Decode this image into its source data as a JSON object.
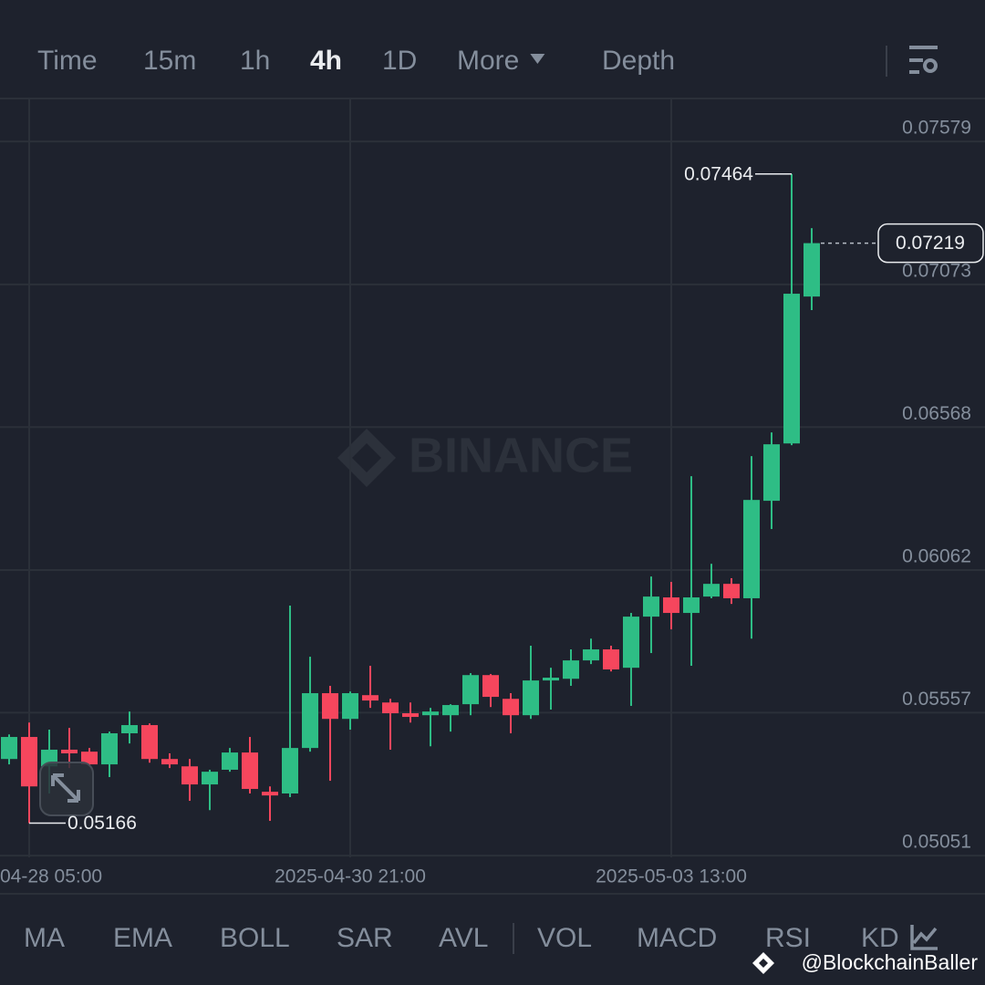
{
  "tabs": [
    "Time",
    "15m",
    "1h",
    "4h",
    "1D",
    "More",
    "Depth"
  ],
  "active_tab": 3,
  "indicators": [
    "MA",
    "EMA",
    "BOLL",
    "SAR",
    "AVL",
    "VOL",
    "MACD",
    "RSI",
    "KD"
  ],
  "watermark": "BINANCE",
  "credit": "@BlockchainBaller",
  "chart_data": {
    "type": "candlestick",
    "up_color": "#2ebd85",
    "down_color": "#f6465d",
    "grid": true,
    "categories": [
      null,
      "04-28 05:00",
      null,
      null,
      null,
      null,
      null,
      null,
      null,
      null,
      null,
      null,
      null,
      null,
      null,
      null,
      null,
      "2025-04-30 21:00",
      null,
      null,
      null,
      null,
      null,
      null,
      null,
      null,
      null,
      null,
      null,
      null,
      null,
      null,
      null,
      "2025-05-03 13:00",
      null,
      null,
      null,
      null,
      null,
      null,
      null
    ],
    "open": [
      0.05393,
      0.05471,
      0.05367,
      0.05426,
      0.05419,
      0.05374,
      0.05484,
      0.05513,
      0.05393,
      0.05367,
      0.05303,
      0.05355,
      0.05416,
      0.05277,
      0.05271,
      0.05432,
      0.05626,
      0.05535,
      0.05619,
      0.05593,
      0.05555,
      0.05548,
      0.05548,
      0.05587,
      0.0569,
      0.05606,
      0.05548,
      0.05671,
      0.05677,
      0.05742,
      0.05781,
      0.05716,
      0.05897,
      0.05965,
      0.0591,
      0.05968,
      0.06013,
      0.05962,
      0.06307,
      0.0651,
      0.0703
    ],
    "high": [
      0.0548,
      0.05522,
      0.05497,
      0.05503,
      0.05432,
      0.0549,
      0.05561,
      0.05519,
      0.05413,
      0.05393,
      0.05355,
      0.05432,
      0.05471,
      0.05296,
      0.05936,
      0.05755,
      0.05652,
      0.05632,
      0.05723,
      0.05606,
      0.05593,
      0.05574,
      0.05587,
      0.05697,
      0.05694,
      0.05626,
      0.05794,
      0.05716,
      0.05781,
      0.05819,
      0.05794,
      0.0591,
      0.06039,
      0.0602,
      0.06394,
      0.06084,
      0.06033,
      0.06465,
      0.06549,
      0.07464,
      0.07272
    ],
    "low": [
      0.05374,
      0.05166,
      0.05271,
      0.05361,
      0.05367,
      0.05329,
      0.05448,
      0.0538,
      0.05361,
      0.05245,
      0.05212,
      0.05348,
      0.05271,
      0.05174,
      0.05258,
      0.05419,
      0.05316,
      0.05497,
      0.05574,
      0.05426,
      0.05522,
      0.05438,
      0.0549,
      0.05548,
      0.05577,
      0.05484,
      0.05535,
      0.05568,
      0.05652,
      0.05729,
      0.05703,
      0.05581,
      0.05768,
      0.05852,
      0.05723,
      0.05962,
      0.05942,
      0.05819,
      0.06207,
      0.06504,
      0.06982
    ],
    "close": [
      0.05471,
      0.05296,
      0.05426,
      0.05413,
      0.05374,
      0.05484,
      0.05513,
      0.05393,
      0.05374,
      0.05303,
      0.05348,
      0.05416,
      0.05287,
      0.05264,
      0.05432,
      0.05626,
      0.05535,
      0.05626,
      0.056,
      0.05555,
      0.05542,
      0.05561,
      0.05584,
      0.0569,
      0.05613,
      0.05548,
      0.05671,
      0.05681,
      0.05742,
      0.05781,
      0.0571,
      0.05897,
      0.05968,
      0.0591,
      0.05965,
      0.06013,
      0.05962,
      0.0631,
      0.06507,
      0.0704,
      0.07219
    ],
    "ylim": [
      0.05045,
      0.07731
    ],
    "yticks": [
      0.05051,
      0.05557,
      0.06062,
      0.06568,
      0.07073,
      0.07579
    ]
  }
}
